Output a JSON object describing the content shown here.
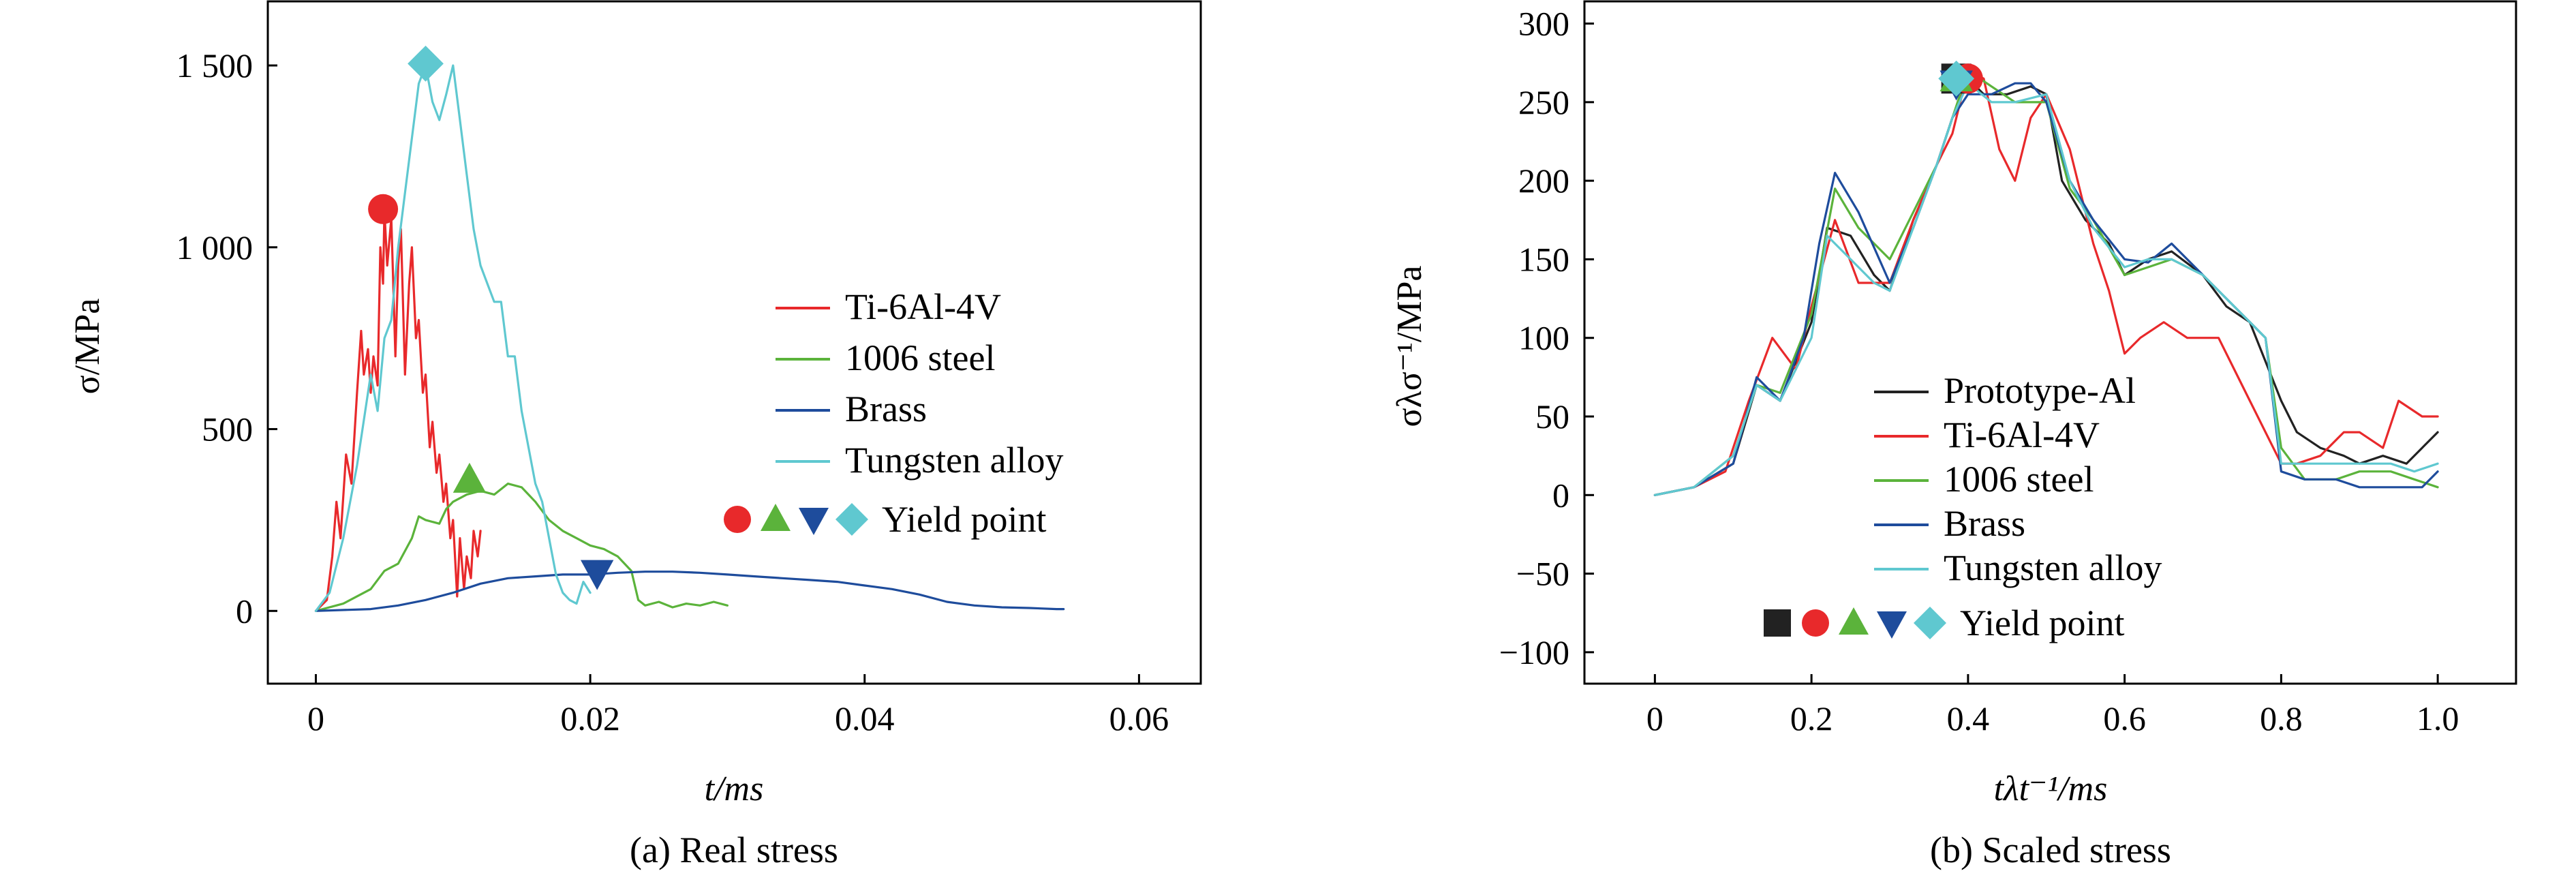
{
  "chart_data": [
    {
      "type": "line",
      "caption": "(a) Real stress",
      "xlabel": "t/ms",
      "ylabel": "σ/MPa",
      "xlim": [
        -0.0035,
        0.0645
      ],
      "ylim": [
        -200,
        1680
      ],
      "xticks": [
        0,
        0.02,
        0.04,
        0.06
      ],
      "xtick_labels": [
        "0",
        "0.02",
        "0.04",
        "0.06"
      ],
      "yticks": [
        0,
        500,
        1000,
        1500
      ],
      "ytick_labels": [
        "0",
        "500",
        "1 000",
        "1 500"
      ],
      "grid": false,
      "legend_position": "right",
      "yield_point_label": "Yield point",
      "series": [
        {
          "name": "Ti-6Al-4V",
          "color": "#e8292b",
          "x": [
            0.0,
            0.0008,
            0.0012,
            0.0015,
            0.0018,
            0.0022,
            0.0026,
            0.003,
            0.0033,
            0.0035,
            0.0038,
            0.004,
            0.0042,
            0.0045,
            0.0047,
            0.0049,
            0.005,
            0.0052,
            0.0055,
            0.0058,
            0.006,
            0.0062,
            0.0065,
            0.0068,
            0.007,
            0.0073,
            0.0075,
            0.0078,
            0.008,
            0.0083,
            0.0085,
            0.0088,
            0.009,
            0.0093,
            0.0095,
            0.0098,
            0.01,
            0.0103,
            0.0105,
            0.0108,
            0.011,
            0.0113,
            0.0115,
            0.0118,
            0.012
          ],
          "y": [
            0,
            30,
            150,
            300,
            200,
            430,
            350,
            600,
            770,
            650,
            720,
            600,
            700,
            620,
            1000,
            900,
            1100,
            950,
            1080,
            700,
            950,
            1050,
            650,
            900,
            1000,
            750,
            800,
            600,
            650,
            450,
            520,
            380,
            430,
            300,
            350,
            200,
            250,
            40,
            200,
            60,
            150,
            90,
            220,
            150,
            220
          ]
        },
        {
          "name": "1006 steel",
          "color": "#5bb33b",
          "x": [
            0.0,
            0.002,
            0.004,
            0.005,
            0.006,
            0.007,
            0.0075,
            0.008,
            0.009,
            0.0095,
            0.01,
            0.011,
            0.012,
            0.013,
            0.014,
            0.015,
            0.016,
            0.017,
            0.018,
            0.019,
            0.02,
            0.021,
            0.022,
            0.023,
            0.0235,
            0.024,
            0.025,
            0.026,
            0.027,
            0.028,
            0.029,
            0.03
          ],
          "y": [
            0,
            20,
            60,
            110,
            130,
            200,
            260,
            250,
            240,
            280,
            300,
            320,
            330,
            320,
            350,
            340,
            300,
            250,
            220,
            200,
            180,
            170,
            150,
            110,
            30,
            15,
            25,
            10,
            20,
            15,
            25,
            15
          ]
        },
        {
          "name": "Brass",
          "color": "#1e4c9c",
          "x": [
            0.0,
            0.004,
            0.006,
            0.008,
            0.01,
            0.012,
            0.014,
            0.016,
            0.018,
            0.02,
            0.022,
            0.024,
            0.026,
            0.028,
            0.03,
            0.032,
            0.034,
            0.036,
            0.038,
            0.04,
            0.042,
            0.044,
            0.046,
            0.048,
            0.05,
            0.052,
            0.054,
            0.0545
          ],
          "y": [
            0,
            5,
            15,
            30,
            50,
            75,
            90,
            95,
            100,
            100,
            105,
            108,
            108,
            105,
            100,
            95,
            90,
            85,
            80,
            70,
            60,
            45,
            25,
            15,
            10,
            8,
            5,
            5
          ]
        },
        {
          "name": "Tungsten alloy",
          "color": "#5fc8d0",
          "x": [
            0.0,
            0.001,
            0.002,
            0.003,
            0.004,
            0.0045,
            0.005,
            0.0055,
            0.006,
            0.0065,
            0.007,
            0.0075,
            0.008,
            0.0085,
            0.009,
            0.0095,
            0.01,
            0.0105,
            0.011,
            0.0115,
            0.012,
            0.0125,
            0.013,
            0.0135,
            0.014,
            0.0145,
            0.015,
            0.0155,
            0.016,
            0.0165,
            0.017,
            0.0175,
            0.018,
            0.0185,
            0.019,
            0.0195,
            0.02
          ],
          "y": [
            0,
            50,
            200,
            400,
            650,
            550,
            750,
            800,
            1000,
            1150,
            1300,
            1450,
            1500,
            1400,
            1350,
            1420,
            1500,
            1350,
            1200,
            1050,
            950,
            900,
            850,
            850,
            700,
            700,
            550,
            450,
            350,
            300,
            200,
            100,
            50,
            30,
            20,
            80,
            50
          ]
        }
      ],
      "yield_points": [
        {
          "series": "Ti-6Al-4V",
          "marker": "circle",
          "x": 0.0049,
          "y": 1105
        },
        {
          "series": "1006 steel",
          "marker": "triangle-up",
          "x": 0.0112,
          "y": 360
        },
        {
          "series": "Brass",
          "marker": "triangle-down",
          "x": 0.0205,
          "y": 105
        },
        {
          "series": "Tungsten alloy",
          "marker": "diamond",
          "x": 0.008,
          "y": 1505
        }
      ]
    },
    {
      "type": "line",
      "caption": "(b) Scaled stress",
      "xlabel": "tλt⁻¹/ms",
      "ylabel": "σλσ⁻¹/MPa",
      "xlim": [
        -0.09,
        1.1
      ],
      "ylim": [
        -120,
        315
      ],
      "xticks": [
        0,
        0.2,
        0.4,
        0.6,
        0.8,
        1.0
      ],
      "xtick_labels": [
        "0",
        "0.2",
        "0.4",
        "0.6",
        "0.8",
        "1.0"
      ],
      "yticks": [
        -100,
        -50,
        0,
        50,
        100,
        150,
        200,
        250,
        300
      ],
      "ytick_labels": [
        "−100",
        "−50",
        "0",
        "50",
        "100",
        "150",
        "200",
        "250",
        "300"
      ],
      "grid": false,
      "legend_position": "bottom-center",
      "yield_point_label": "Yield point",
      "series": [
        {
          "name": "Prototype-Al",
          "color": "#222222",
          "x": [
            0,
            0.05,
            0.1,
            0.13,
            0.16,
            0.2,
            0.22,
            0.25,
            0.28,
            0.3,
            0.33,
            0.36,
            0.38,
            0.4,
            0.42,
            0.45,
            0.48,
            0.5,
            0.52,
            0.55,
            0.58,
            0.6,
            0.63,
            0.66,
            0.7,
            0.73,
            0.76,
            0.8,
            0.82,
            0.85,
            0.88,
            0.9,
            0.93,
            0.96,
            0.98,
            1.0
          ],
          "y": [
            0,
            5,
            20,
            70,
            60,
            110,
            170,
            165,
            140,
            130,
            175,
            210,
            240,
            265,
            255,
            255,
            260,
            255,
            200,
            175,
            160,
            140,
            150,
            155,
            140,
            120,
            110,
            60,
            40,
            30,
            25,
            20,
            25,
            20,
            30,
            40
          ]
        },
        {
          "name": "Ti-6Al-4V",
          "color": "#e8292b",
          "x": [
            0,
            0.05,
            0.09,
            0.12,
            0.15,
            0.18,
            0.2,
            0.23,
            0.26,
            0.3,
            0.33,
            0.36,
            0.38,
            0.4,
            0.42,
            0.44,
            0.46,
            0.48,
            0.5,
            0.53,
            0.56,
            0.58,
            0.6,
            0.62,
            0.65,
            0.68,
            0.72,
            0.76,
            0.8,
            0.82,
            0.85,
            0.88,
            0.9,
            0.93,
            0.95,
            0.98,
            1.0
          ],
          "y": [
            0,
            5,
            15,
            60,
            100,
            80,
            120,
            175,
            135,
            135,
            175,
            210,
            230,
            270,
            265,
            220,
            200,
            240,
            255,
            220,
            160,
            130,
            90,
            100,
            110,
            100,
            100,
            60,
            20,
            20,
            25,
            40,
            40,
            30,
            60,
            50,
            50
          ]
        },
        {
          "name": "1006 steel",
          "color": "#5bb33b",
          "x": [
            0,
            0.05,
            0.1,
            0.13,
            0.16,
            0.2,
            0.23,
            0.26,
            0.3,
            0.33,
            0.36,
            0.38,
            0.4,
            0.43,
            0.46,
            0.5,
            0.53,
            0.56,
            0.6,
            0.63,
            0.66,
            0.7,
            0.74,
            0.78,
            0.8,
            0.83,
            0.87,
            0.9,
            0.94,
            0.97,
            1.0
          ],
          "y": [
            0,
            5,
            25,
            70,
            65,
            115,
            195,
            170,
            150,
            180,
            210,
            240,
            270,
            260,
            250,
            250,
            195,
            175,
            140,
            145,
            150,
            140,
            120,
            100,
            30,
            10,
            10,
            15,
            15,
            10,
            5
          ]
        },
        {
          "name": "Brass",
          "color": "#1e4c9c",
          "x": [
            0,
            0.05,
            0.1,
            0.13,
            0.16,
            0.19,
            0.21,
            0.23,
            0.26,
            0.3,
            0.33,
            0.36,
            0.38,
            0.4,
            0.43,
            0.46,
            0.48,
            0.5,
            0.53,
            0.56,
            0.6,
            0.63,
            0.66,
            0.7,
            0.74,
            0.78,
            0.8,
            0.83,
            0.87,
            0.9,
            0.94,
            0.98,
            1.0
          ],
          "y": [
            0,
            5,
            20,
            75,
            60,
            100,
            160,
            205,
            180,
            135,
            170,
            210,
            240,
            255,
            255,
            262,
            262,
            250,
            200,
            175,
            150,
            148,
            160,
            140,
            120,
            100,
            15,
            10,
            10,
            5,
            5,
            5,
            15
          ]
        },
        {
          "name": "Tungsten alloy",
          "color": "#5fc8d0",
          "x": [
            0,
            0.05,
            0.1,
            0.13,
            0.16,
            0.2,
            0.22,
            0.25,
            0.28,
            0.3,
            0.33,
            0.36,
            0.38,
            0.4,
            0.43,
            0.46,
            0.5,
            0.53,
            0.56,
            0.6,
            0.63,
            0.66,
            0.7,
            0.74,
            0.78,
            0.8,
            0.83,
            0.87,
            0.9,
            0.94,
            0.97,
            1.0
          ],
          "y": [
            0,
            5,
            25,
            70,
            60,
            100,
            165,
            150,
            135,
            130,
            170,
            210,
            240,
            262,
            250,
            250,
            255,
            200,
            170,
            145,
            150,
            150,
            140,
            120,
            100,
            20,
            20,
            20,
            20,
            20,
            15,
            20
          ]
        }
      ],
      "yield_points": [
        {
          "series": "Prototype-Al",
          "marker": "square",
          "x": 0.385,
          "y": 265
        },
        {
          "series": "Ti-6Al-4V",
          "marker": "circle",
          "x": 0.4,
          "y": 265
        },
        {
          "series": "1006 steel",
          "marker": "triangle-up",
          "x": 0.385,
          "y": 265
        },
        {
          "series": "Brass",
          "marker": "triangle-down",
          "x": 0.385,
          "y": 262
        },
        {
          "series": "Tungsten alloy",
          "marker": "diamond",
          "x": 0.385,
          "y": 265
        }
      ]
    }
  ]
}
